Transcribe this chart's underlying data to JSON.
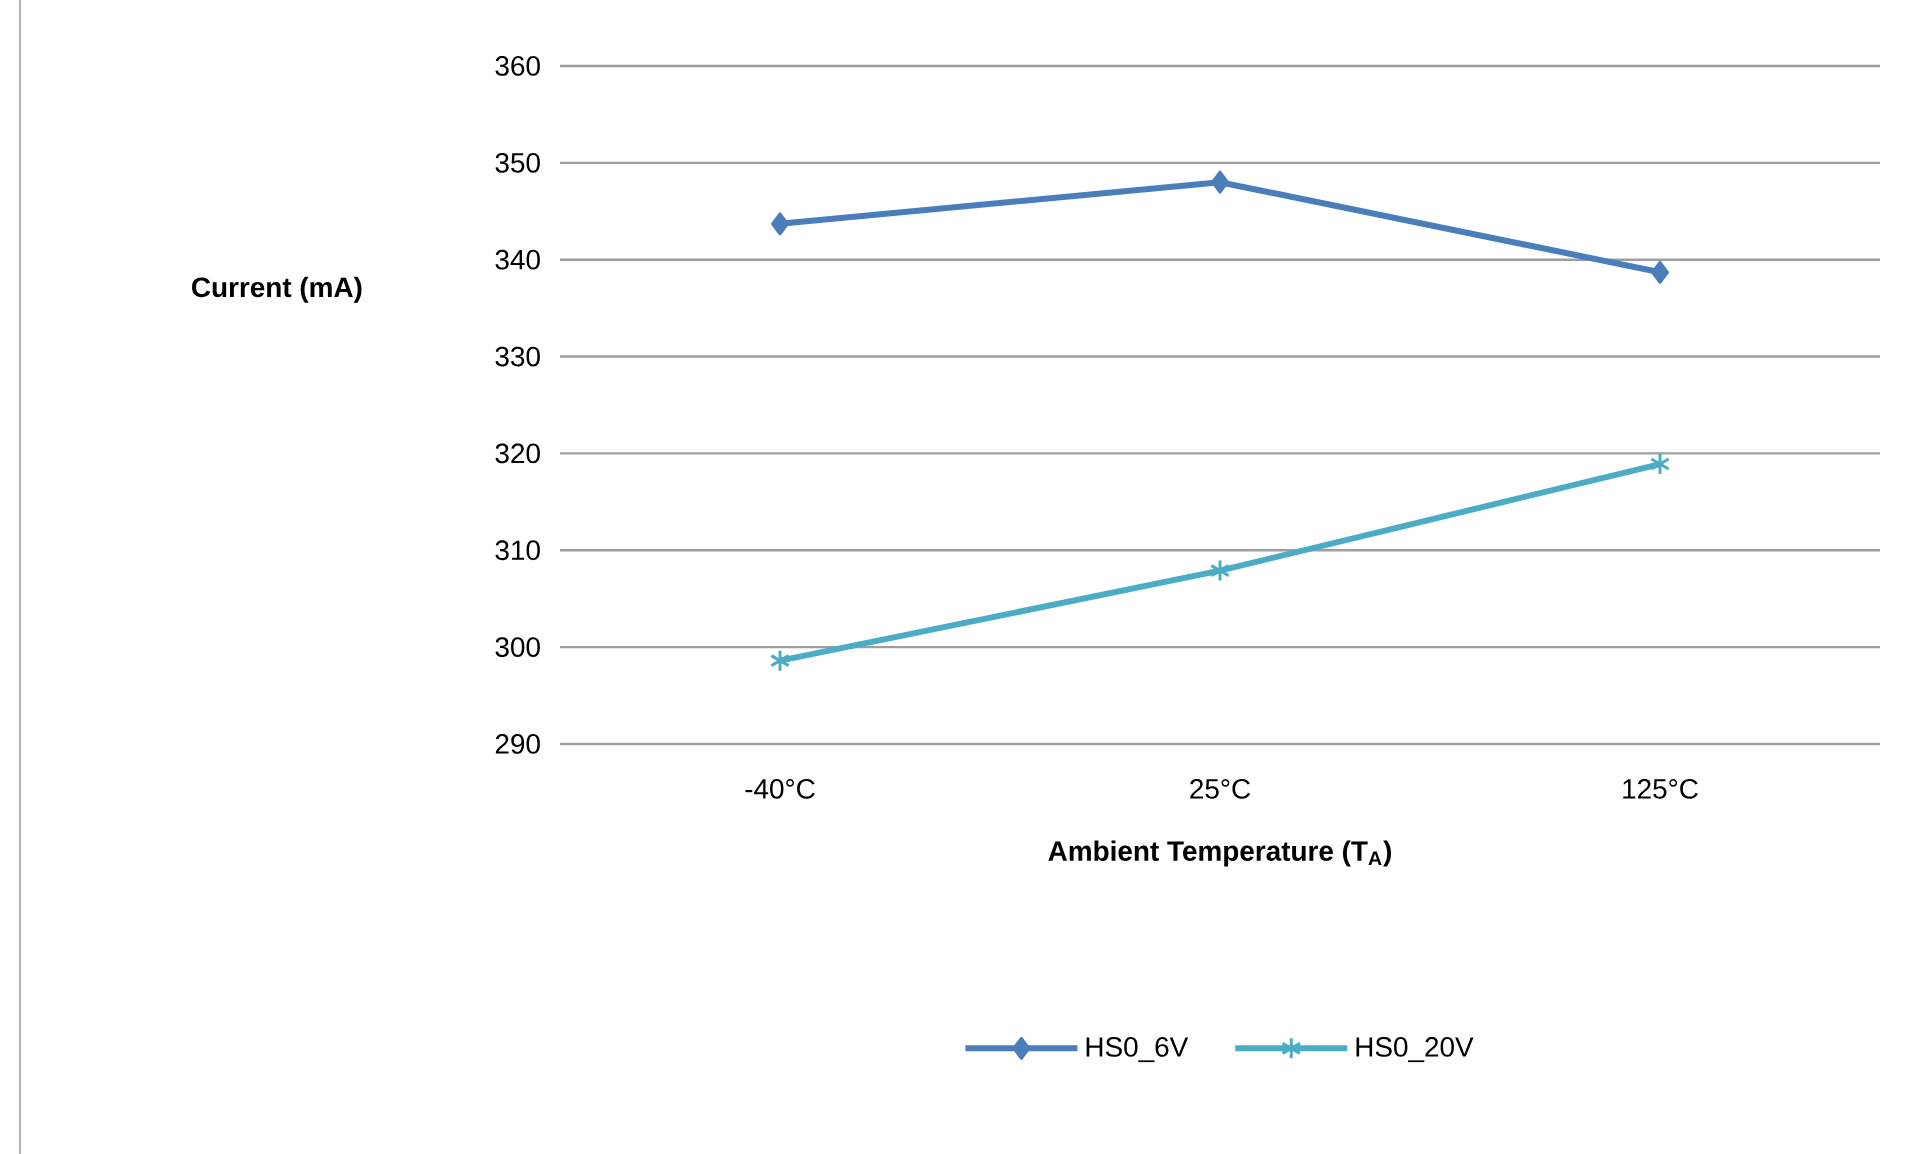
{
  "chart_data": {
    "type": "line",
    "xlabel": "Ambient Temperature (T$_{A}$)",
    "ylabel": "Current (mA)",
    "categories": [
      "-40°C",
      "25°C",
      "125°C"
    ],
    "series": [
      {
        "name": "HS0_6V",
        "color": "#4a7ebb",
        "marker": "diamond",
        "values": [
          343.7,
          348,
          338.7
        ]
      },
      {
        "name": "HS0_20V",
        "color": "#4bacc6",
        "marker": "cross",
        "values": [
          298.6,
          307.9,
          318.9
        ]
      }
    ],
    "ylim": [
      290,
      360
    ],
    "yticks": [
      290,
      300,
      310,
      320,
      330,
      340,
      350,
      360
    ],
    "grid": "y",
    "legend": "bottom",
    "line_style": "solid"
  }
}
